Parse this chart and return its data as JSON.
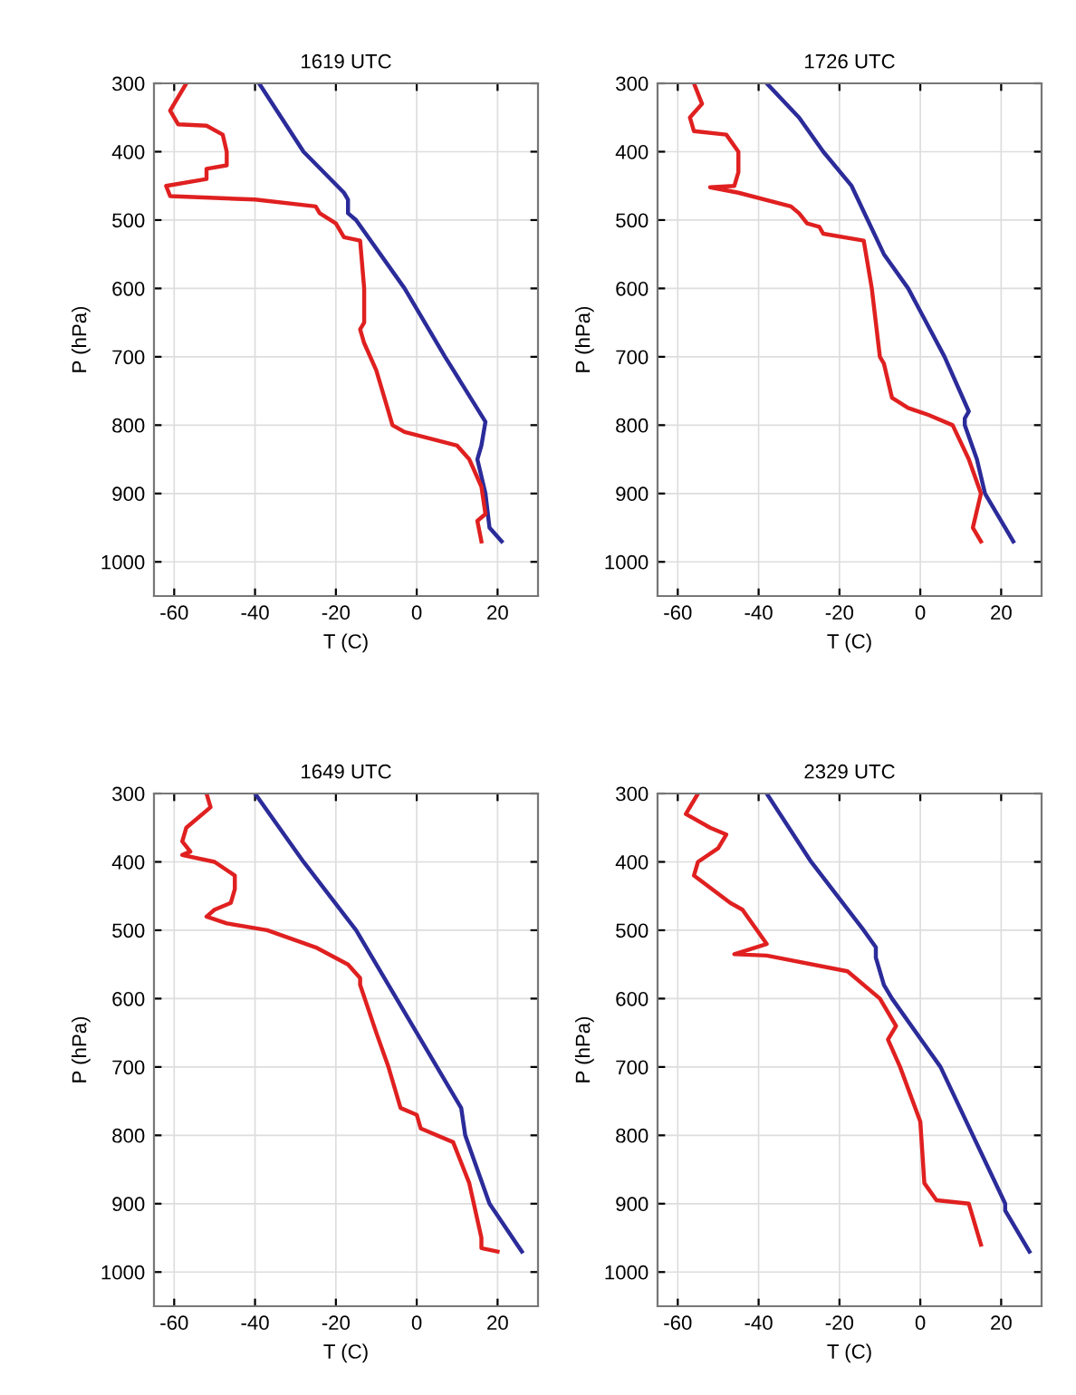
{
  "chart_data": [
    {
      "type": "line",
      "title": "1619 UTC",
      "xlabel": "T (C)",
      "ylabel": "P (hPa)",
      "xlim": [
        -65,
        30
      ],
      "ylim": [
        1050,
        300
      ],
      "xticks": [
        -60,
        -40,
        -20,
        0,
        20
      ],
      "yticks": [
        300,
        400,
        500,
        600,
        700,
        800,
        900,
        1000
      ],
      "grid": true,
      "series": [
        {
          "color": "#2b2b9a",
          "x": [
            -39,
            -28,
            -18,
            -17,
            -17,
            -15,
            -3,
            7,
            17,
            16,
            15,
            17,
            18,
            21
          ],
          "values": [
            300,
            400,
            460,
            470,
            490,
            500,
            600,
            700,
            795,
            830,
            850,
            900,
            950,
            970
          ]
        },
        {
          "color": "#e02020",
          "x": [
            -57,
            -61,
            -59,
            -52,
            -48,
            -47,
            -47,
            -52,
            -52,
            -62,
            -61,
            -40,
            -25,
            -24,
            -20,
            -18,
            -14,
            -13,
            -13,
            -14,
            -13,
            -10,
            -7,
            -6,
            -3,
            10,
            13,
            16,
            17,
            15,
            16
          ],
          "values": [
            300,
            340,
            360,
            362,
            375,
            400,
            420,
            425,
            440,
            450,
            465,
            470,
            480,
            490,
            505,
            525,
            530,
            600,
            650,
            660,
            680,
            720,
            780,
            800,
            810,
            830,
            850,
            890,
            930,
            940,
            970
          ]
        }
      ]
    },
    {
      "type": "line",
      "title": "1726 UTC",
      "xlabel": "T (C)",
      "ylabel": "P (hPa)",
      "xlim": [
        -65,
        30
      ],
      "ylim": [
        1050,
        300
      ],
      "xticks": [
        -60,
        -40,
        -20,
        0,
        20
      ],
      "yticks": [
        300,
        400,
        500,
        600,
        700,
        800,
        900,
        1000
      ],
      "grid": true,
      "series": [
        {
          "color": "#2b2b9a",
          "x": [
            -38,
            -30,
            -24,
            -17,
            -13,
            -9,
            -3,
            6,
            12,
            11,
            11,
            14,
            16,
            23
          ],
          "values": [
            300,
            350,
            400,
            450,
            500,
            550,
            600,
            700,
            780,
            790,
            800,
            850,
            900,
            970
          ]
        },
        {
          "color": "#e02020",
          "x": [
            -56,
            -54,
            -57,
            -56,
            -48,
            -45,
            -45,
            -46,
            -52,
            -45,
            -32,
            -30,
            -28,
            -25,
            -24,
            -14,
            -12,
            -11,
            -10,
            -9,
            -7,
            -3,
            2,
            8,
            12,
            15,
            13,
            15
          ],
          "values": [
            300,
            330,
            350,
            370,
            375,
            400,
            430,
            450,
            452,
            460,
            480,
            490,
            505,
            510,
            520,
            530,
            600,
            650,
            700,
            710,
            760,
            775,
            785,
            800,
            850,
            900,
            950,
            970
          ]
        }
      ]
    },
    {
      "type": "line",
      "title": "1649 UTC",
      "xlabel": "T (C)",
      "ylabel": "P (hPa)",
      "xlim": [
        -65,
        30
      ],
      "ylim": [
        1050,
        300
      ],
      "xticks": [
        -60,
        -40,
        -20,
        0,
        20
      ],
      "yticks": [
        300,
        400,
        500,
        600,
        700,
        800,
        900,
        1000
      ],
      "grid": true,
      "series": [
        {
          "color": "#2b2b9a",
          "x": [
            -40,
            -28,
            -15,
            -5,
            5,
            11,
            12,
            18,
            26
          ],
          "values": [
            300,
            400,
            500,
            600,
            700,
            760,
            800,
            900,
            970
          ]
        },
        {
          "color": "#e02020",
          "x": [
            -52,
            -51,
            -57,
            -58,
            -56,
            -58,
            -50,
            -45,
            -45,
            -46,
            -50,
            -52,
            -47,
            -37,
            -25,
            -17,
            -14,
            -14,
            -10,
            -7,
            -4,
            0,
            1,
            9,
            13,
            16,
            16,
            20
          ],
          "values": [
            300,
            320,
            350,
            370,
            385,
            390,
            400,
            420,
            440,
            460,
            470,
            480,
            490,
            500,
            525,
            550,
            570,
            580,
            650,
            700,
            760,
            770,
            790,
            810,
            870,
            950,
            965,
            970
          ]
        }
      ]
    },
    {
      "type": "line",
      "title": "2329 UTC",
      "xlabel": "T (C)",
      "ylabel": "P (hPa)",
      "xlim": [
        -65,
        30
      ],
      "ylim": [
        1050,
        300
      ],
      "xticks": [
        -60,
        -40,
        -20,
        0,
        20
      ],
      "yticks": [
        300,
        400,
        500,
        600,
        700,
        800,
        900,
        1000
      ],
      "grid": true,
      "series": [
        {
          "color": "#2b2b9a",
          "x": [
            -38,
            -27,
            -14,
            -11,
            -11,
            -9,
            -7,
            5,
            9,
            13,
            21,
            21,
            27
          ],
          "values": [
            300,
            400,
            500,
            525,
            540,
            580,
            600,
            700,
            750,
            800,
            900,
            910,
            970
          ]
        },
        {
          "color": "#e02020",
          "x": [
            -55,
            -58,
            -52,
            -48,
            -50,
            -55,
            -56,
            -47,
            -44,
            -38,
            -46,
            -38,
            -18,
            -10,
            -6,
            -8,
            -5,
            0,
            1,
            4,
            12,
            15
          ],
          "values": [
            300,
            330,
            350,
            360,
            380,
            400,
            420,
            460,
            470,
            520,
            535,
            537,
            560,
            600,
            640,
            660,
            700,
            780,
            870,
            895,
            900,
            960
          ]
        }
      ]
    }
  ]
}
